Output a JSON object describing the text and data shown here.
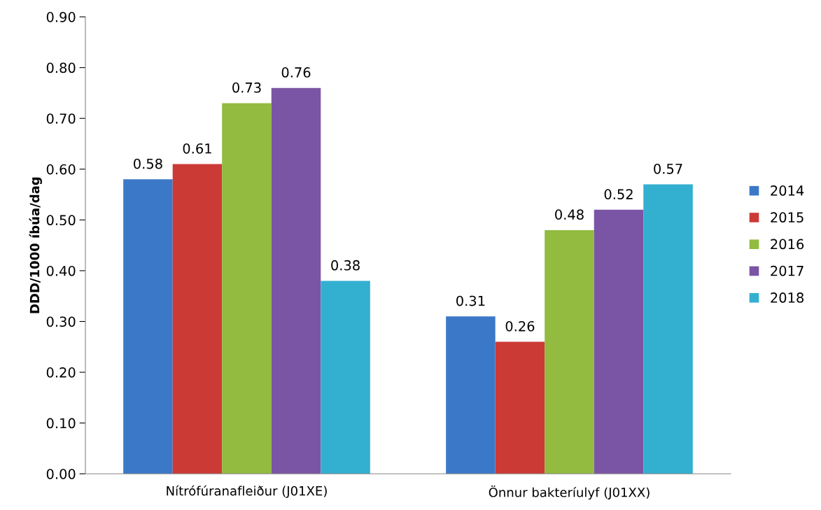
{
  "chart_data": {
    "type": "bar",
    "ylabel": "DDD/1000 íbúa/dag",
    "categories": [
      "Nítrófúranafleiður (J01XE)",
      "Önnur bakteríulyf (J01XX)"
    ],
    "series": [
      {
        "name": "2014",
        "color": "#3c78c8",
        "values": [
          0.58,
          0.31
        ]
      },
      {
        "name": "2015",
        "color": "#cc3a36",
        "values": [
          0.61,
          0.26
        ]
      },
      {
        "name": "2016",
        "color": "#92bb3f",
        "values": [
          0.73,
          0.48
        ]
      },
      {
        "name": "2017",
        "color": "#7b55a5",
        "values": [
          0.76,
          0.52
        ]
      },
      {
        "name": "2018",
        "color": "#33afd0",
        "values": [
          0.38,
          0.57
        ]
      }
    ],
    "ylim": [
      0,
      0.9
    ],
    "yticks": [
      {
        "value": 0,
        "label": "0.00"
      },
      {
        "value": 0.1,
        "label": "0.10"
      },
      {
        "value": 0.2,
        "label": "0.20"
      },
      {
        "value": 0.3,
        "label": "0.30"
      },
      {
        "value": 0.4,
        "label": "0.40"
      },
      {
        "value": 0.5,
        "label": "0.50"
      },
      {
        "value": 0.6,
        "label": "0.60"
      },
      {
        "value": 0.7,
        "label": "0.70"
      },
      {
        "value": 0.8,
        "label": "0.80"
      },
      {
        "value": 0.9,
        "label": "0.90"
      }
    ],
    "data_labels": true,
    "grid": false,
    "legend": "right"
  }
}
